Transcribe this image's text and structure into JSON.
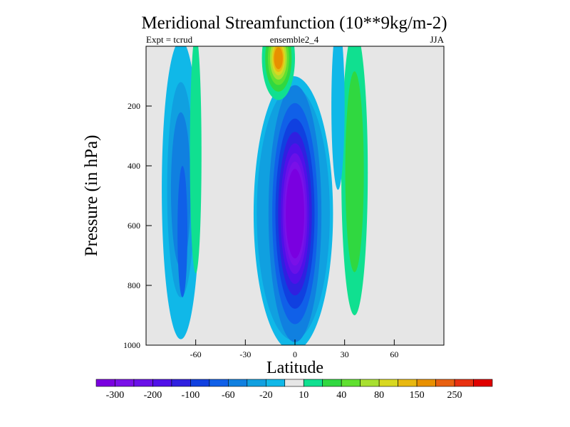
{
  "chart_data": {
    "type": "heatmap",
    "title": "Meridional Streamfunction (10**9kg/m-2)",
    "left_label": "Expt = tcrud",
    "center_label": "ensemble2_4",
    "right_label": "JJA",
    "xlabel": "Latitude",
    "ylabel": "Pressure (in hPa)",
    "xlim": [
      -90,
      90
    ],
    "ylim": [
      1000,
      0
    ],
    "y_reversed": true,
    "x_ticks": [
      -60,
      -30,
      0,
      30,
      60
    ],
    "y_ticks": [
      200,
      400,
      600,
      800,
      1000
    ],
    "background_color": "#e6e6e6",
    "colorbar": {
      "colors": [
        "#7a00e0",
        "#7a10e8",
        "#6a10e8",
        "#5010e8",
        "#3020e0",
        "#1040e0",
        "#1060e8",
        "#1080e0",
        "#10a0e0",
        "#10b8e8",
        "#e6e6e6",
        "#10e090",
        "#30d840",
        "#60e030",
        "#a8e030",
        "#d8d820",
        "#e8b810",
        "#e89000",
        "#e86010",
        "#e83010",
        "#e00000"
      ],
      "labels": [
        "-300",
        "-200",
        "-100",
        "-60",
        "-20",
        "10",
        "40",
        "80",
        "150",
        "250"
      ]
    },
    "features": [
      {
        "name": "southern-hemisphere-negative-cell",
        "lat": [
          -80,
          -55
        ],
        "p": [
          0,
          970
        ],
        "min_value": -60
      },
      {
        "name": "southern-positive-band",
        "lat": [
          -62,
          -55
        ],
        "p": [
          0,
          770
        ],
        "max_value": 10
      },
      {
        "name": "main-negative-cell",
        "lat": [
          -20,
          18
        ],
        "p": [
          100,
          990
        ],
        "min_value": -300
      },
      {
        "name": "upper-positive-cell",
        "lat": [
          -20,
          -2
        ],
        "p": [
          0,
          150
        ],
        "max_value": 150
      },
      {
        "name": "northern-positive-band",
        "lat": [
          28,
          45
        ],
        "p": [
          0,
          900
        ],
        "max_value": 40
      }
    ]
  }
}
